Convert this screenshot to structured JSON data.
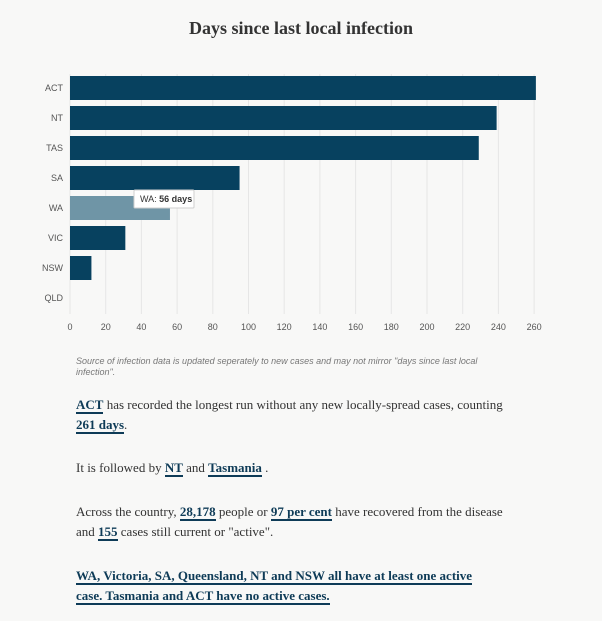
{
  "chart_data": {
    "type": "bar",
    "orientation": "horizontal",
    "title": "Days since last local infection",
    "categories": [
      "ACT",
      "NT",
      "TAS",
      "SA",
      "WA",
      "VIC",
      "NSW",
      "QLD"
    ],
    "values": [
      261,
      239,
      229,
      95,
      56,
      31,
      12,
      0
    ],
    "highlighted": "WA",
    "xlim": [
      0,
      260
    ],
    "xticks": [
      0,
      20,
      40,
      60,
      80,
      100,
      120,
      140,
      160,
      180,
      200,
      220,
      240,
      260
    ],
    "grid": true,
    "tooltip": {
      "category": "WA",
      "prefix": "WA:",
      "value_text": "56 days"
    }
  },
  "colors": {
    "bar": "#07415f",
    "bar_highlight": "#6f95a6",
    "grid": "#e6e6e6",
    "link": "#0e3b57"
  },
  "note": "Source of infection data is updated seperately to new cases and may not mirror \"days since last local infection\".",
  "paragraphs": {
    "p1": {
      "link1": "ACT",
      "text1": " has recorded the longest run without any new locally-spread cases, counting ",
      "link2": "261 days",
      "text2": "."
    },
    "p2": {
      "text1": "It is followed by ",
      "link1": "NT",
      "text2": " and ",
      "link2": "Tasmania",
      "text3": " ."
    },
    "p3": {
      "text1": "Across the country, ",
      "link1": "28,178",
      "text2": " people or ",
      "link2": "97 per cent",
      "text3": " have recovered from the disease and ",
      "link3": "155",
      "text4": " cases still current or \"active\"."
    },
    "p4": {
      "line1": "WA, Victoria, SA, Queensland, NT and NSW all have at least one active",
      "line2": "case. Tasmania and ACT have no active cases."
    }
  }
}
